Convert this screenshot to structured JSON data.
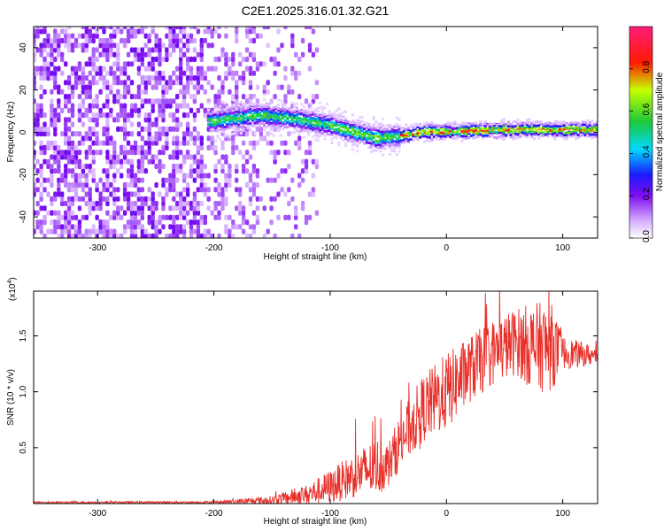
{
  "title": "C2E1.2025.316.01.32.G21",
  "chart_data": [
    {
      "type": "heatmap",
      "xlabel": "Height of straight line (km)",
      "ylabel": "Frequency (Hz)",
      "xlim": [
        -355,
        130
      ],
      "ylim": [
        -50,
        50
      ],
      "xticks": [
        -300,
        -200,
        -100,
        0,
        100
      ],
      "yticks": [
        -40,
        -20,
        0,
        20,
        40
      ],
      "xtick_labels": [
        "-300",
        "-200",
        "-100",
        "0",
        "100"
      ],
      "ytick_labels": [
        "-40",
        "-20",
        "0",
        "20",
        "40"
      ],
      "ridge": [
        {
          "x": -200,
          "y": 5
        },
        {
          "x": -160,
          "y": 8
        },
        {
          "x": -130,
          "y": 6
        },
        {
          "x": -100,
          "y": 3
        },
        {
          "x": -80,
          "y": 0
        },
        {
          "x": -60,
          "y": -3
        },
        {
          "x": -40,
          "y": -2
        },
        {
          "x": -20,
          "y": 0
        },
        {
          "x": 0,
          "y": 0
        },
        {
          "x": 50,
          "y": 1
        },
        {
          "x": 90,
          "y": 1
        },
        {
          "x": 130,
          "y": 1
        }
      ],
      "colorbar": {
        "label": "Normalized spectral amplitude",
        "range": [
          0,
          1
        ],
        "ticks": [
          0.0,
          0.2,
          0.4,
          0.6,
          0.8
        ],
        "tick_labels": [
          "0.0",
          "0.2",
          "0.4",
          "0.6",
          "0.8"
        ]
      }
    },
    {
      "type": "line",
      "xlabel": "Height of straight line (km)",
      "ylabel": "SNR (10 * v/v)",
      "yscale_label": "(x10",
      "yscale_exp": "4",
      "yscale_close": ")",
      "xlim": [
        -355,
        130
      ],
      "ylim": [
        0,
        19000
      ],
      "xticks": [
        -300,
        -200,
        -100,
        0,
        100
      ],
      "yticks": [
        5000,
        10000,
        15000
      ],
      "xtick_labels": [
        "-300",
        "-200",
        "-100",
        "0",
        "100"
      ],
      "ytick_labels": [
        "0.5",
        "1.0",
        "1.5"
      ],
      "color": "#e8302a",
      "envelope": [
        {
          "x": -355,
          "mean": 100,
          "noise": 80
        },
        {
          "x": -200,
          "mean": 120,
          "noise": 100
        },
        {
          "x": -150,
          "mean": 300,
          "noise": 400
        },
        {
          "x": -120,
          "mean": 800,
          "noise": 900
        },
        {
          "x": -100,
          "mean": 1500,
          "noise": 1500
        },
        {
          "x": -80,
          "mean": 2500,
          "noise": 2000
        },
        {
          "x": -60,
          "mean": 3300,
          "noise": 2600
        },
        {
          "x": -50,
          "mean": 3500,
          "noise": 2000
        },
        {
          "x": -40,
          "mean": 5500,
          "noise": 2500
        },
        {
          "x": -20,
          "mean": 8500,
          "noise": 3000
        },
        {
          "x": 0,
          "mean": 10000,
          "noise": 3500
        },
        {
          "x": 20,
          "mean": 12000,
          "noise": 3000
        },
        {
          "x": 40,
          "mean": 13500,
          "noise": 3000
        },
        {
          "x": 60,
          "mean": 14500,
          "noise": 3000
        },
        {
          "x": 75,
          "mean": 14000,
          "noise": 4000
        },
        {
          "x": 90,
          "mean": 14000,
          "noise": 4000
        },
        {
          "x": 100,
          "mean": 13500,
          "noise": 1500
        },
        {
          "x": 130,
          "mean": 13200,
          "noise": 800
        }
      ]
    }
  ]
}
